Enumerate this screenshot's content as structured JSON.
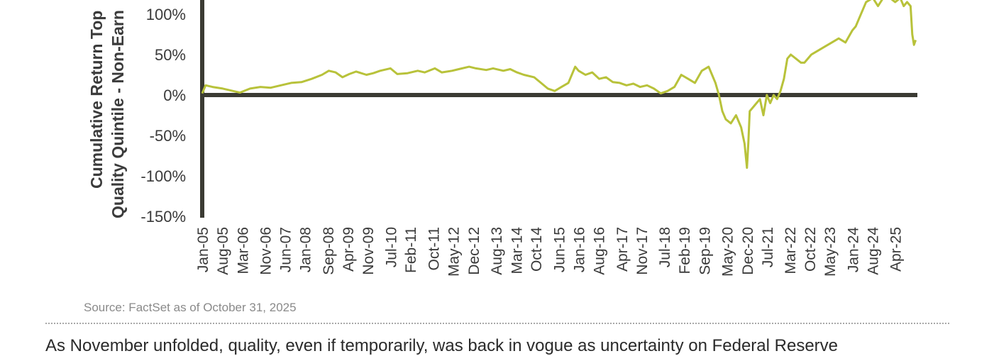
{
  "chart_data": {
    "type": "line",
    "ylabel_line1": "Cumulative Return Top",
    "ylabel_line2": "Quality Quintile - Non-Earn",
    "ylim": [
      -150,
      140
    ],
    "yticks": [
      -150,
      -100,
      -50,
      0,
      50,
      100
    ],
    "ytick_labels": [
      "-150%",
      "-100%",
      "-50%",
      "0%",
      "50%",
      "100%"
    ],
    "xlim": [
      2005.0,
      2025.9
    ],
    "xtick_labels": [
      "Jan-05",
      "Aug-05",
      "Mar-06",
      "Nov-06",
      "Jun-07",
      "Jan-08",
      "Sep-08",
      "Apr-09",
      "Nov-09",
      "Jul-10",
      "Feb-11",
      "Oct-11",
      "May-12",
      "Dec-12",
      "Aug-13",
      "Mar-14",
      "Oct-14",
      "Jun-15",
      "Jan-16",
      "Aug-16",
      "Apr-17",
      "Nov-17",
      "Jul-18",
      "Feb-19",
      "Sep-19",
      "May-20",
      "Dec-20",
      "Jul-21",
      "Mar-22",
      "Oct-22",
      "May-23",
      "Jan-24",
      "Aug-24",
      "Apr-25"
    ],
    "xtick_values": [
      2005.0,
      2005.58,
      2006.17,
      2006.83,
      2007.42,
      2008.0,
      2008.67,
      2009.25,
      2009.83,
      2010.5,
      2011.08,
      2011.75,
      2012.33,
      2012.92,
      2013.58,
      2014.17,
      2014.75,
      2015.42,
      2016.0,
      2016.58,
      2017.25,
      2017.83,
      2018.5,
      2019.08,
      2019.67,
      2020.33,
      2020.92,
      2021.5,
      2022.17,
      2022.75,
      2023.33,
      2024.0,
      2024.58,
      2025.25
    ],
    "grid": false,
    "series": [
      {
        "color": "#b8c23a",
        "x": [
          2005.0,
          2005.1,
          2005.3,
          2005.6,
          2005.9,
          2006.1,
          2006.4,
          2006.7,
          2007.0,
          2007.3,
          2007.6,
          2007.9,
          2008.2,
          2008.5,
          2008.7,
          2008.9,
          2009.1,
          2009.3,
          2009.5,
          2009.8,
          2010.0,
          2010.2,
          2010.5,
          2010.7,
          2011.0,
          2011.3,
          2011.5,
          2011.8,
          2012.0,
          2012.3,
          2012.5,
          2012.8,
          2013.0,
          2013.3,
          2013.5,
          2013.8,
          2014.0,
          2014.2,
          2014.4,
          2014.7,
          2014.9,
          2015.1,
          2015.3,
          2015.5,
          2015.7,
          2015.9,
          2016.0,
          2016.2,
          2016.4,
          2016.6,
          2016.8,
          2017.0,
          2017.2,
          2017.4,
          2017.6,
          2017.8,
          2018.0,
          2018.2,
          2018.4,
          2018.6,
          2018.8,
          2019.0,
          2019.2,
          2019.4,
          2019.6,
          2019.8,
          2019.9,
          2020.0,
          2020.1,
          2020.2,
          2020.3,
          2020.45,
          2020.6,
          2020.75,
          2020.85,
          2020.92,
          2020.96,
          2021.0,
          2021.1,
          2021.2,
          2021.3,
          2021.4,
          2021.5,
          2021.6,
          2021.7,
          2021.8,
          2021.9,
          2022.0,
          2022.1,
          2022.2,
          2022.35,
          2022.5,
          2022.6,
          2022.8,
          2023.0,
          2023.2,
          2023.4,
          2023.6,
          2023.8,
          2024.0,
          2024.1,
          2024.2,
          2024.4,
          2024.6,
          2024.75,
          2024.9,
          2025.0,
          2025.1,
          2025.25,
          2025.4,
          2025.5,
          2025.6,
          2025.7,
          2025.75,
          2025.8,
          2025.85
        ],
        "y": [
          2,
          12,
          10,
          8,
          5,
          3,
          8,
          10,
          9,
          12,
          15,
          16,
          20,
          25,
          30,
          28,
          22,
          26,
          29,
          25,
          27,
          30,
          33,
          26,
          27,
          30,
          28,
          33,
          28,
          30,
          32,
          35,
          33,
          31,
          33,
          30,
          32,
          28,
          25,
          22,
          15,
          8,
          5,
          10,
          15,
          35,
          30,
          25,
          28,
          20,
          22,
          16,
          15,
          12,
          14,
          10,
          12,
          8,
          2,
          5,
          10,
          25,
          20,
          15,
          30,
          35,
          25,
          15,
          0,
          -20,
          -30,
          -35,
          -25,
          -40,
          -60,
          -90,
          -60,
          -20,
          -15,
          -10,
          -5,
          -25,
          0,
          -10,
          0,
          -5,
          5,
          20,
          45,
          50,
          45,
          40,
          40,
          50,
          55,
          60,
          65,
          70,
          65,
          80,
          85,
          95,
          115,
          120,
          110,
          120,
          125,
          120,
          115,
          120,
          110,
          115,
          110,
          75,
          62,
          68
        ]
      }
    ]
  },
  "source": "Source: FactSet as of October 31, 2025",
  "body_text": "As November unfolded, quality, even if temporarily, was back in vogue as uncertainty on Federal Reserve"
}
